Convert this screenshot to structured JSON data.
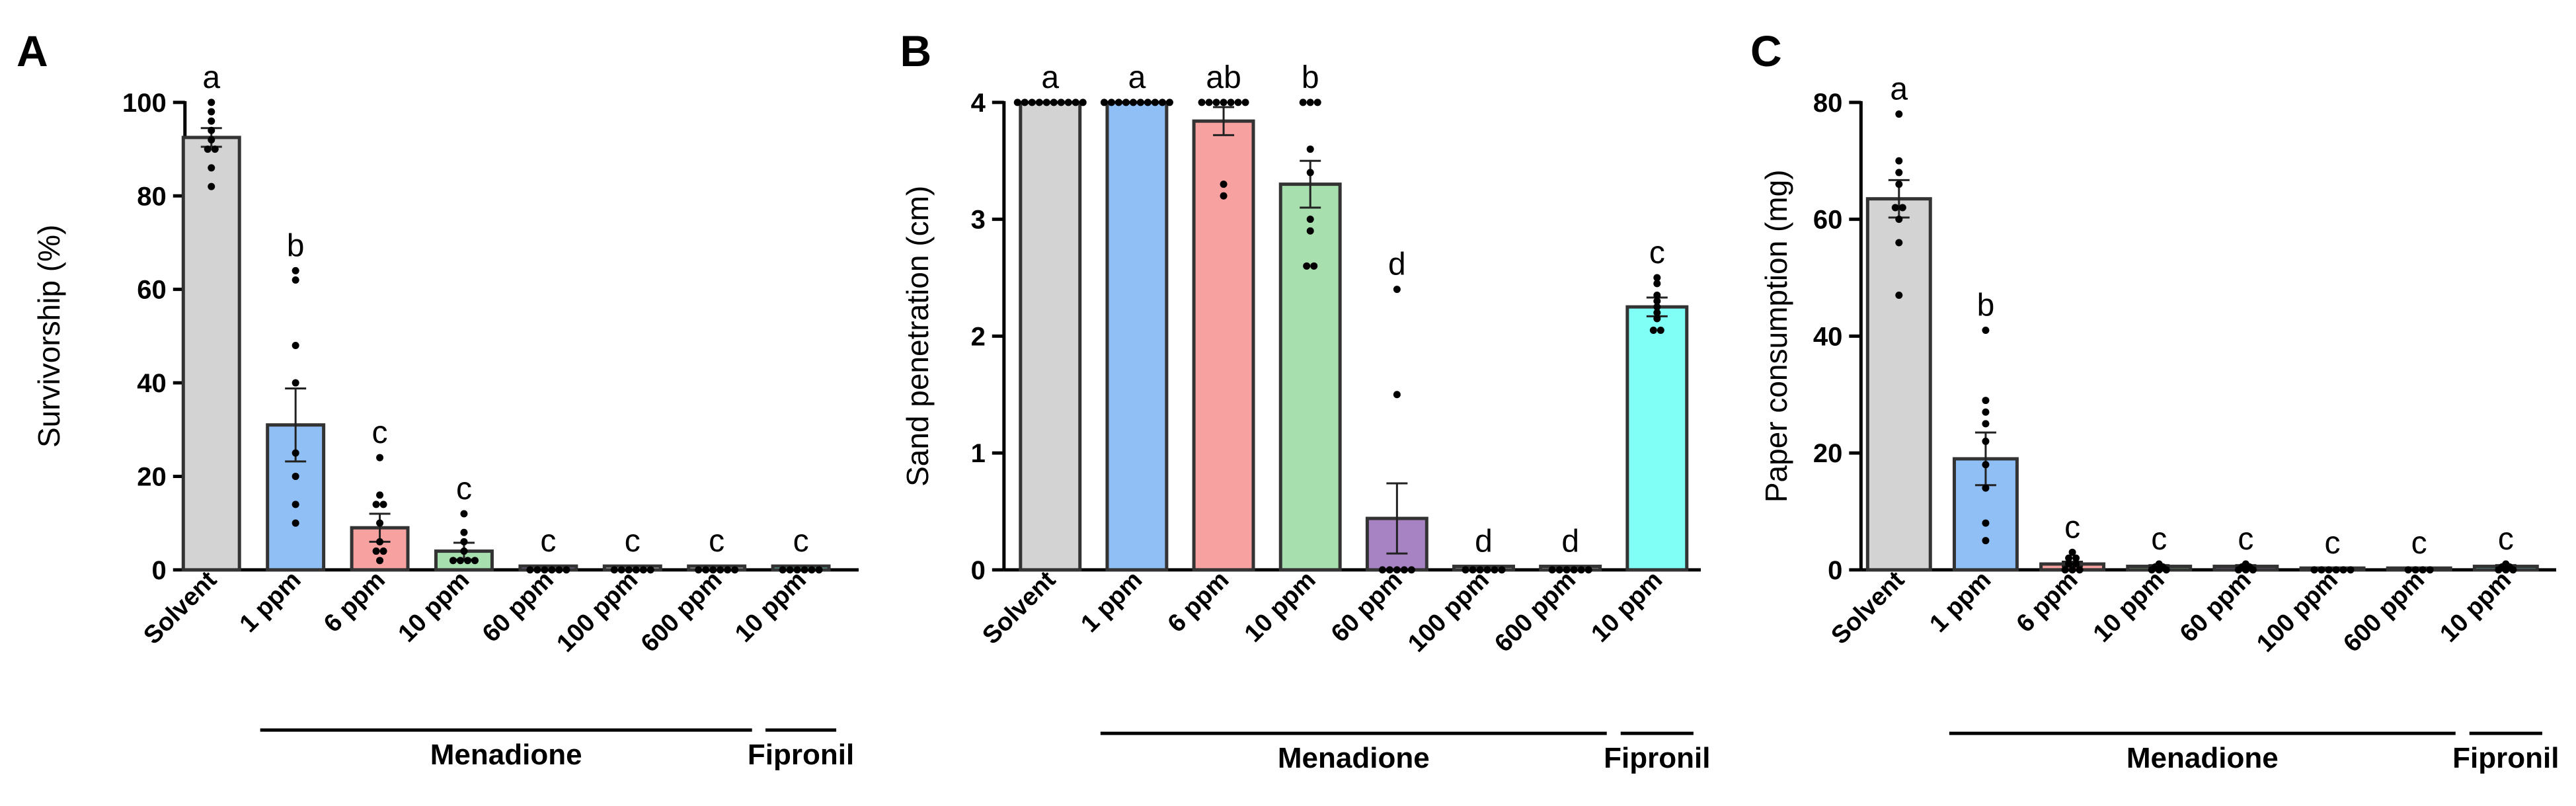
{
  "colors": {
    "solvent": "#d3d3d3",
    "ppm1": "#8fbff5",
    "ppm6": "#f7a1a1",
    "ppm10": "#a8dfae",
    "ppm60": "#a883c4",
    "fipronil": "#7ffff5",
    "bar_edge": "#333333",
    "points": "#000000"
  },
  "chart_data": [
    {
      "type": "bar",
      "panel_label": "A",
      "title": "",
      "xlabel": "",
      "ylabel": "Survivorship (%)",
      "ylim": [
        0,
        100
      ],
      "yticks": [
        "0",
        "20",
        "40",
        "60",
        "80",
        "100"
      ],
      "categories": [
        "Solvent",
        "1 ppm",
        "6 ppm",
        "10 ppm",
        "60 ppm",
        "100 ppm",
        "600 ppm",
        "10 ppm"
      ],
      "values": [
        92.5,
        31,
        9,
        4,
        0.8,
        0.8,
        0.8,
        0.8
      ],
      "sem": [
        2,
        7.8,
        3,
        1.8,
        0,
        0,
        0,
        0
      ],
      "letters": [
        "a",
        "b",
        "c",
        "c",
        "c",
        "c",
        "c",
        "c"
      ],
      "colors": [
        "#d3d3d3",
        "#8fbff5",
        "#f7a1a1",
        "#a8dfae",
        "#a883c4",
        "#ffffff",
        "#ffffff",
        "#7ffff5"
      ],
      "points": [
        [
          100,
          98,
          96,
          94,
          92,
          90,
          90,
          86,
          82
        ],
        [
          64,
          62,
          48,
          40,
          25,
          20,
          14,
          10
        ],
        [
          24,
          16,
          14,
          14,
          10,
          6,
          4,
          4,
          2
        ],
        [
          12,
          8,
          6,
          4,
          2,
          2,
          2,
          2
        ],
        [
          0,
          0,
          0,
          0,
          0,
          0
        ],
        [
          0,
          0,
          0,
          0,
          0,
          0
        ],
        [
          0,
          0,
          0,
          0,
          0,
          0
        ],
        [
          0,
          0,
          0,
          0,
          0,
          0
        ]
      ],
      "groups": [
        {
          "name": "Menadione",
          "from": 1,
          "to": 6
        },
        {
          "name": "Fipronil",
          "from": 7,
          "to": 7
        }
      ]
    },
    {
      "type": "bar",
      "panel_label": "B",
      "title": "",
      "xlabel": "",
      "ylabel": "Sand penetration (cm)",
      "ylim": [
        0,
        4
      ],
      "yticks": [
        "0",
        "1",
        "2",
        "3",
        "4"
      ],
      "categories": [
        "Solvent",
        "1 ppm",
        "6 ppm",
        "10 ppm",
        "60 ppm",
        "100 ppm",
        "600 ppm",
        "10 ppm"
      ],
      "values": [
        4,
        4,
        3.84,
        3.3,
        0.44,
        0.03,
        0.03,
        2.25
      ],
      "sem": [
        0,
        0,
        0.12,
        0.2,
        0.3,
        0,
        0,
        0.08
      ],
      "letters": [
        "a",
        "a",
        "ab",
        "b",
        "d",
        "d",
        "d",
        "c"
      ],
      "colors": [
        "#d3d3d3",
        "#8fbff5",
        "#f7a1a1",
        "#a8dfae",
        "#a883c4",
        "#ffffff",
        "#ffffff",
        "#7ffff5"
      ],
      "points": [
        [
          4,
          4,
          4,
          4,
          4,
          4,
          4,
          4,
          4,
          4
        ],
        [
          4,
          4,
          4,
          4,
          4,
          4,
          4,
          4,
          4,
          4
        ],
        [
          4,
          4,
          4,
          4,
          4,
          4,
          4,
          3.3,
          3.2
        ],
        [
          4,
          4,
          4,
          3.6,
          3.4,
          3.0,
          2.9,
          2.6,
          2.6
        ],
        [
          2.4,
          1.5,
          0,
          0,
          0,
          0,
          0
        ],
        [
          0,
          0,
          0,
          0,
          0,
          0
        ],
        [
          0,
          0,
          0,
          0,
          0,
          0
        ],
        [
          2.5,
          2.45,
          2.35,
          2.3,
          2.25,
          2.2,
          2.15,
          2.05,
          2.05
        ]
      ],
      "groups": [
        {
          "name": "Menadione",
          "from": 1,
          "to": 6
        },
        {
          "name": "Fipronil",
          "from": 7,
          "to": 7
        }
      ]
    },
    {
      "type": "bar",
      "panel_label": "C",
      "title": "",
      "xlabel": "",
      "ylabel": "Paper consumption (mg)",
      "ylim": [
        0,
        80
      ],
      "yticks": [
        "0",
        "20",
        "40",
        "60",
        "80"
      ],
      "categories": [
        "Solvent",
        "1 ppm",
        "6 ppm",
        "10 ppm",
        "60 ppm",
        "100 ppm",
        "600 ppm",
        "10 ppm"
      ],
      "values": [
        63.5,
        19,
        1,
        0.6,
        0.6,
        0.3,
        0.3,
        0.6
      ],
      "sem": [
        3.2,
        4.5,
        0.4,
        0.2,
        0.2,
        0,
        0,
        0.2
      ],
      "letters": [
        "a",
        "b",
        "c",
        "c",
        "c",
        "c",
        "c",
        "c"
      ],
      "colors": [
        "#d3d3d3",
        "#8fbff5",
        "#f7a1a1",
        "#a8dfae",
        "#a883c4",
        "#ffffff",
        "#ffffff",
        "#7ffff5"
      ],
      "points": [
        [
          78,
          70,
          68,
          66,
          62,
          62,
          60,
          56,
          47
        ],
        [
          41,
          29,
          27,
          25,
          22,
          18,
          14,
          8,
          5
        ],
        [
          3,
          2,
          2,
          1,
          1,
          0,
          0,
          0
        ],
        [
          1,
          0.5,
          0.5,
          0,
          0,
          0
        ],
        [
          1,
          0.5,
          0.5,
          0,
          0,
          0
        ],
        [
          0,
          0,
          0,
          0,
          0,
          0
        ],
        [
          0,
          0,
          0,
          0
        ],
        [
          1,
          0.5,
          0.5,
          0,
          0,
          0
        ]
      ],
      "groups": [
        {
          "name": "Menadione",
          "from": 1,
          "to": 6
        },
        {
          "name": "Fipronil",
          "from": 7,
          "to": 7
        }
      ]
    }
  ]
}
